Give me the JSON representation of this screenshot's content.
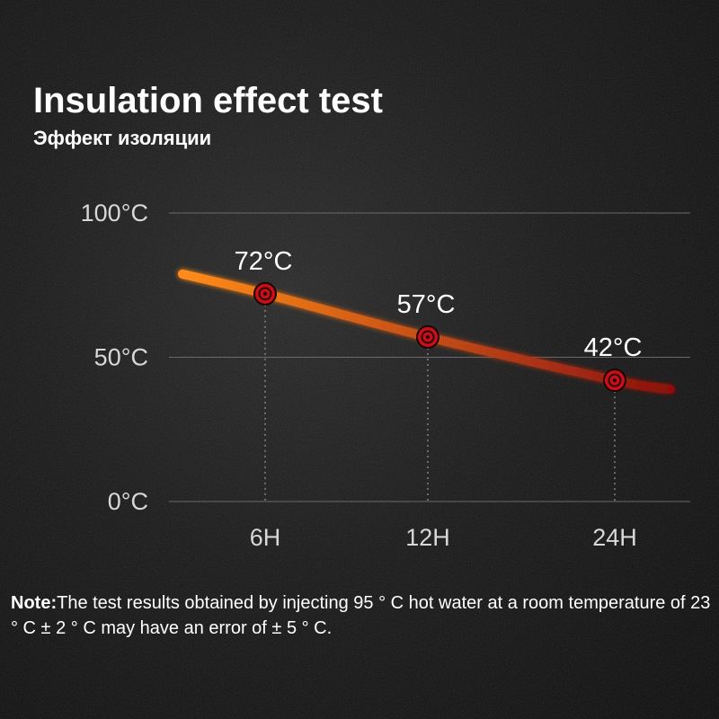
{
  "header": {
    "title": "Insulation effect test",
    "subtitle": "Эффект изоляции"
  },
  "note": {
    "label": "Note:",
    "text": "The test results obtained by injecting 95 ° C hot water at a room temperature of 23 ° C ± 2 ° C may have an error of ± 5 ° C."
  },
  "colors": {
    "background": "#0f0f0f",
    "line_start": "#ff8c1a",
    "line_end": "#8a1010",
    "marker": "#c8101a"
  },
  "chart_data": {
    "type": "line",
    "title": "",
    "xlabel": "",
    "ylabel": "",
    "ylim": [
      0,
      100
    ],
    "y_ticks": [
      {
        "value": 100,
        "label": "100°C"
      },
      {
        "value": 50,
        "label": "50°C"
      },
      {
        "value": 0,
        "label": "0°C"
      }
    ],
    "categories": [
      "6H",
      "12H",
      "24H"
    ],
    "series": [
      {
        "values": [
          72,
          57,
          42
        ],
        "labels": [
          "72°C",
          "57°C",
          "42°C"
        ]
      }
    ],
    "grid": true,
    "legend": "none"
  }
}
